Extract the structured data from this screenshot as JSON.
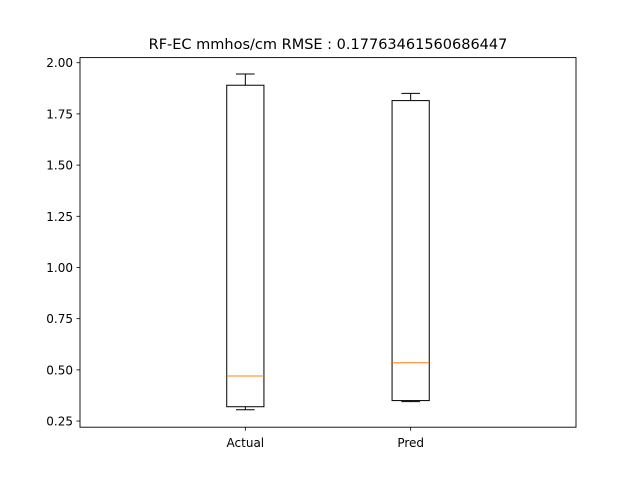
{
  "chart_data": {
    "type": "boxplot",
    "title": "RF-EC mmhos/cm RMSE : 0.17763461560686447",
    "xlabel": "",
    "ylabel": "",
    "ylim": [
      0.22,
      2.025
    ],
    "yticks": [
      0.25,
      0.5,
      0.75,
      1.0,
      1.25,
      1.5,
      1.75,
      2.0
    ],
    "ytick_labels": [
      "0.25",
      "0.50",
      "0.75",
      "1.00",
      "1.25",
      "1.50",
      "1.75",
      "2.00"
    ],
    "categories": [
      "Actual",
      "Pred"
    ],
    "boxes": [
      {
        "category": "Actual",
        "whisker_low": 0.305,
        "q1": 0.32,
        "median": 0.47,
        "q3": 1.89,
        "whisker_high": 1.945
      },
      {
        "category": "Pred",
        "whisker_low": 0.345,
        "q1": 0.35,
        "median": 0.535,
        "q3": 1.815,
        "whisker_high": 1.85
      }
    ],
    "grid": false,
    "colors": {
      "box": "#000000",
      "median": "#ff7f0e"
    }
  }
}
